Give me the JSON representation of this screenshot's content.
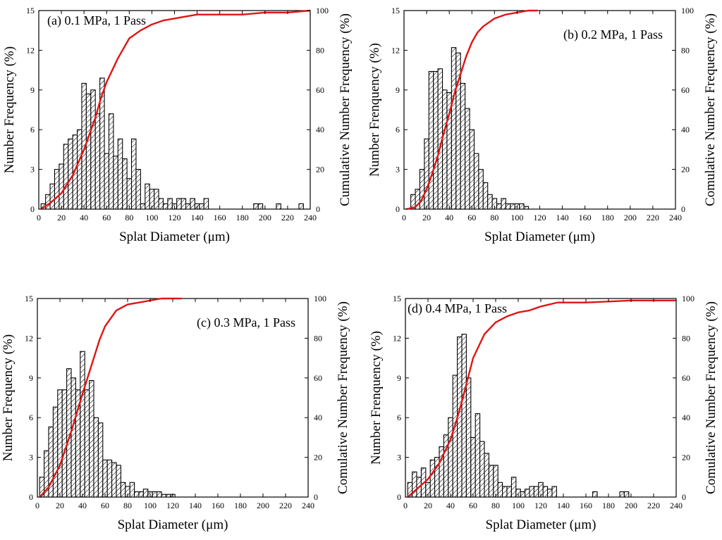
{
  "chart_data": [
    {
      "type": "bar",
      "title": "(a) 0.1 MPa, 1 Pass",
      "xlabel": "Splat Diameter (μm)",
      "ylabel": "Number Frequency (%)",
      "ylabel_right": "Cumulative Number Frequency (%)",
      "xlim": [
        0,
        240
      ],
      "ylim": [
        0,
        15
      ],
      "ylim_right": [
        0,
        100
      ],
      "xticks": [
        "0",
        "20",
        "40",
        "60",
        "80",
        "100",
        "120",
        "140",
        "160",
        "180",
        "200",
        "220",
        "240"
      ],
      "yticks": [
        "0",
        "3",
        "6",
        "9",
        "12",
        "15"
      ],
      "yticks_right": [
        "0",
        "20",
        "40",
        "60",
        "80",
        "100"
      ],
      "bin_width": 4,
      "x": [
        4,
        8,
        12,
        16,
        20,
        24,
        28,
        32,
        36,
        40,
        44,
        48,
        52,
        56,
        60,
        64,
        68,
        72,
        76,
        80,
        84,
        88,
        92,
        96,
        100,
        104,
        108,
        112,
        116,
        120,
        124,
        128,
        132,
        136,
        140,
        144,
        148,
        192,
        196,
        212,
        232
      ],
      "values": [
        0.4,
        1.1,
        1.9,
        3.0,
        3.4,
        4.9,
        5.3,
        5.6,
        6.0,
        9.5,
        8.7,
        9.0,
        7.2,
        9.9,
        4.2,
        7.2,
        4.0,
        5.3,
        3.8,
        2.3,
        5.3,
        3.0,
        0.4,
        1.9,
        1.5,
        1.5,
        0.8,
        0.4,
        0.8,
        0.4,
        0.8,
        0.8,
        0.4,
        0.8,
        0.4,
        0.4,
        0.8,
        0.4,
        0.4,
        0.4,
        0.4
      ],
      "cumulative": {
        "x": [
          2,
          10,
          20,
          30,
          40,
          50,
          55,
          60,
          70,
          80,
          90,
          100,
          110,
          120,
          130,
          140,
          160,
          180,
          200,
          220,
          240
        ],
        "y": [
          0,
          3,
          8,
          17,
          30,
          46,
          56,
          64,
          76,
          86,
          90,
          93,
          95,
          96,
          97,
          98,
          98,
          98,
          99,
          99,
          100
        ]
      }
    },
    {
      "type": "bar",
      "title": "(b) 0.2 MPa, 1 Pass",
      "xlabel": "Splat Diameter (μm)",
      "ylabel": "Number Frenquency (%)",
      "ylabel_right": "Comulative Number Frequency (%)",
      "xlim": [
        0,
        240
      ],
      "ylim": [
        0,
        15
      ],
      "ylim_right": [
        0,
        100
      ],
      "xticks": [
        "0",
        "20",
        "40",
        "60",
        "80",
        "100",
        "120",
        "140",
        "160",
        "180",
        "200",
        "220",
        "240"
      ],
      "yticks": [
        "0",
        "3",
        "6",
        "9",
        "12",
        "15"
      ],
      "yticks_right": [
        "0",
        "20",
        "40",
        "60",
        "80",
        "100"
      ],
      "bin_width": 4,
      "x": [
        8,
        12,
        16,
        20,
        24,
        28,
        32,
        36,
        40,
        44,
        48,
        52,
        56,
        60,
        64,
        68,
        72,
        76,
        80,
        84,
        88,
        92,
        96,
        100,
        104,
        108
      ],
      "values": [
        1.1,
        1.5,
        3.0,
        5.3,
        10.4,
        10.4,
        10.6,
        9.0,
        8.8,
        12.2,
        11.8,
        9.5,
        7.6,
        6.0,
        4.2,
        3.0,
        2.0,
        1.1,
        0.8,
        0.4,
        0.8,
        0.4,
        0.4,
        0.4,
        0.4,
        0.2
      ],
      "cumulative": {
        "x": [
          2,
          10,
          15,
          20,
          25,
          30,
          35,
          40,
          45,
          50,
          55,
          60,
          65,
          70,
          80,
          90,
          100,
          110,
          118
        ],
        "y": [
          0,
          1,
          4,
          10,
          18,
          27,
          38,
          48,
          59,
          68,
          77,
          84,
          89,
          92,
          96,
          98,
          99,
          100,
          100
        ]
      }
    },
    {
      "type": "bar",
      "title": "(c) 0.3 MPa, 1 Pass",
      "xlabel": "Splat Diameter (μm)",
      "ylabel": "Number Frequency (%)",
      "ylabel_right": "Comulative Number Frequency (%)",
      "xlim": [
        0,
        240
      ],
      "ylim": [
        0,
        15
      ],
      "ylim_right": [
        0,
        100
      ],
      "xticks": [
        "0",
        "20",
        "40",
        "60",
        "80",
        "100",
        "120",
        "140",
        "160",
        "180",
        "200",
        "220",
        "240"
      ],
      "yticks": [
        "0",
        "3",
        "6",
        "9",
        "12",
        "15"
      ],
      "yticks_right": [
        "0",
        "20",
        "40",
        "60",
        "80",
        "100"
      ],
      "bin_width": 4,
      "x": [
        4,
        8,
        12,
        16,
        20,
        24,
        28,
        32,
        36,
        40,
        44,
        48,
        52,
        56,
        60,
        64,
        68,
        72,
        76,
        80,
        84,
        88,
        92,
        96,
        100,
        104,
        108,
        112,
        116,
        120
      ],
      "values": [
        1.5,
        3.5,
        5.3,
        6.8,
        8.1,
        8.1,
        9.7,
        9.0,
        8.1,
        11.0,
        8.1,
        8.8,
        6.0,
        5.6,
        2.8,
        2.8,
        2.6,
        2.4,
        1.1,
        0.8,
        1.1,
        0.4,
        0.4,
        0.6,
        0.4,
        0.4,
        0.4,
        0.2,
        0.2,
        0.2
      ],
      "cumulative": {
        "x": [
          2,
          10,
          20,
          30,
          40,
          50,
          55,
          60,
          70,
          80,
          90,
          100,
          110,
          120,
          128
        ],
        "y": [
          0,
          5,
          16,
          33,
          52,
          70,
          79,
          86,
          94,
          97,
          98,
          99,
          100,
          100,
          100
        ]
      }
    },
    {
      "type": "bar",
      "title": "(d) 0.4 MPa, 1 Pass",
      "xlabel": "Splat Diameter (μm)",
      "ylabel": "Number Frenquency (%)",
      "ylabel_right": "Comulative Number Frequency (%)",
      "xlim": [
        0,
        240
      ],
      "ylim": [
        0,
        15
      ],
      "ylim_right": [
        0,
        100
      ],
      "xticks": [
        "0",
        "20",
        "40",
        "60",
        "80",
        "100",
        "120",
        "140",
        "160",
        "180",
        "200",
        "220",
        "240"
      ],
      "yticks": [
        "0",
        "3",
        "6",
        "9",
        "12",
        "15"
      ],
      "yticks_right": [
        "0",
        "20",
        "40",
        "60",
        "80",
        "100"
      ],
      "bin_width": 4,
      "x": [
        4,
        8,
        12,
        16,
        20,
        24,
        28,
        32,
        36,
        40,
        44,
        48,
        52,
        56,
        60,
        64,
        68,
        72,
        76,
        80,
        84,
        88,
        92,
        96,
        100,
        104,
        108,
        112,
        116,
        120,
        124,
        128,
        132,
        168,
        192,
        196
      ],
      "values": [
        1.1,
        1.9,
        1.5,
        2.2,
        1.1,
        2.8,
        3.0,
        3.8,
        4.7,
        6.0,
        9.2,
        12.1,
        12.3,
        9.0,
        4.5,
        6.3,
        4.2,
        3.3,
        2.4,
        2.4,
        1.1,
        0.8,
        0.8,
        1.5,
        0.6,
        0.4,
        0.6,
        0.8,
        0.8,
        1.1,
        0.8,
        0.6,
        0.8,
        0.4,
        0.4,
        0.4
      ],
      "cumulative": {
        "x": [
          2,
          10,
          20,
          30,
          40,
          45,
          50,
          55,
          60,
          70,
          80,
          90,
          100,
          110,
          120,
          135,
          160,
          200,
          240
        ],
        "y": [
          0,
          4,
          9,
          17,
          29,
          38,
          48,
          59,
          70,
          82,
          88,
          91,
          93,
          94,
          96,
          98,
          98,
          99,
          99
        ]
      }
    }
  ]
}
